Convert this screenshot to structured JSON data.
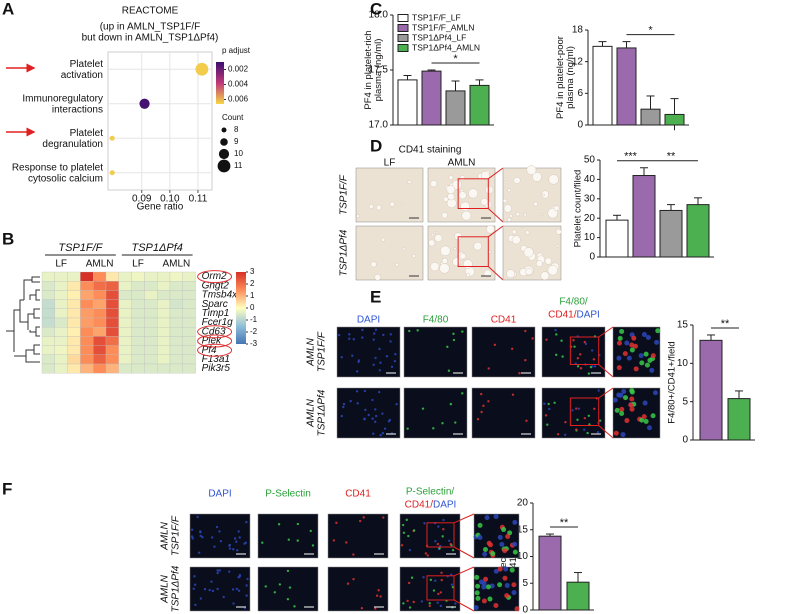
{
  "panel_labels": [
    "A",
    "B",
    "C",
    "D",
    "E",
    "F"
  ],
  "chart_data": [
    {
      "type": "dot",
      "title": "REACTOME",
      "subtitle": "(up in AMLN_TSP1F/F\nbut down in AMLN_TSP1ΔPf4)",
      "categories": [
        "Platelet\nactivation",
        "Immunoregulatory\ninteractions",
        "Platelet\ndegranulation",
        "Response to platelet\ncytosolic calcium"
      ],
      "x": [
        0.1114,
        0.091,
        0.0795,
        0.0795
      ],
      "p_adjust": [
        0.0064,
        0.0012,
        0.0064,
        0.0064
      ],
      "count": [
        11,
        10,
        8,
        8
      ],
      "xlim": [
        0.078,
        0.115
      ],
      "xticks": [
        {
          "value": 0.09,
          "label": "0.09"
        },
        {
          "value": 0.1,
          "label": "0.10"
        },
        {
          "value": 0.11,
          "label": "0.11"
        }
      ],
      "xlabel": "Gene ratio",
      "color_title": "p adjust",
      "clim": [
        0.001,
        0.0066
      ],
      "cticks": [
        0.002,
        0.004,
        0.006
      ],
      "size_title": "Count",
      "size_legend": [
        8,
        9,
        10,
        11
      ],
      "grid": true
    },
    {
      "type": "heatmap",
      "groups": [
        "TSP1F/F",
        "TSP1ΔPf4"
      ],
      "subgroups": [
        "LF",
        "AMLN",
        "LF",
        "AMLN"
      ],
      "rows": [
        "Orm2",
        "Gngt2",
        "Tmsb4x",
        "Sparc",
        "Timp1",
        "Fcer1g",
        "Cd63",
        "Plek",
        "Pf4",
        "F13a1",
        "Pik3r5"
      ],
      "highlighted": [
        0,
        6,
        7,
        8
      ],
      "values": [
        [
          -0.3,
          -0.3,
          -0.3,
          3,
          1.5,
          0.3,
          -0.3,
          -0.2,
          -0.3,
          -0.3,
          -0.2,
          -0.3
        ],
        [
          -0.5,
          -0.3,
          0.3,
          1.5,
          2,
          2.2,
          -0.3,
          -0.5,
          -0.5,
          -0.3,
          -0.5,
          -0.5
        ],
        [
          -0.5,
          -0.3,
          0.2,
          1.2,
          1.5,
          2.5,
          -0.5,
          -0.5,
          -0.3,
          -0.5,
          -0.5,
          -0.5
        ],
        [
          -0.8,
          -0.3,
          0.3,
          1.5,
          1.2,
          2.5,
          -0.3,
          -0.5,
          -0.5,
          -0.3,
          -0.6,
          -0.5
        ],
        [
          -0.8,
          -0.3,
          0.3,
          1.3,
          1.5,
          2.5,
          -0.3,
          -0.5,
          -0.5,
          -0.3,
          -0.5,
          -0.5
        ],
        [
          -0.8,
          -0.5,
          0.3,
          1.3,
          1.5,
          2.5,
          -0.3,
          -0.5,
          -0.5,
          -0.3,
          -0.5,
          -0.5
        ],
        [
          -0.5,
          -0.3,
          0.2,
          1.5,
          1.2,
          2.5,
          -0.3,
          -0.5,
          -0.5,
          -0.3,
          -0.5,
          -0.5
        ],
        [
          -0.3,
          -0.3,
          0.3,
          1.5,
          2.5,
          2,
          -0.3,
          -0.5,
          -0.5,
          -0.3,
          -0.5,
          -0.5
        ],
        [
          -0.3,
          -0.2,
          0.3,
          1.5,
          2.5,
          1.5,
          -0.3,
          -0.5,
          -0.5,
          -0.3,
          -0.5,
          -0.5
        ],
        [
          -0.5,
          -0.3,
          0.5,
          1.5,
          2.2,
          1.5,
          -0.3,
          -0.5,
          -0.5,
          -0.3,
          -0.5,
          -0.5
        ],
        [
          -0.5,
          -0.3,
          0.3,
          1,
          1.5,
          1,
          -0.5,
          -0.5,
          -0.5,
          -0.5,
          -0.5,
          -0.5
        ]
      ],
      "zlim": [
        -3,
        3
      ],
      "zticks": [
        3,
        2,
        1,
        0,
        -1,
        -2,
        -3
      ]
    },
    {
      "type": "bar",
      "ylabel": "PF4 in platelet-rich\nplasma (ng/ml)",
      "values": [
        17.41,
        17.49,
        17.31,
        17.36
      ],
      "errors": [
        0.04,
        0.01,
        0.09,
        0.05
      ],
      "colors": [
        "#ffffff",
        "#9b6aad",
        "#9a9a9a",
        "#4caf50"
      ],
      "legend": [
        "TSP1F/F_LF",
        "TSP1F/F_AMLN",
        "TSP1ΔPf4_LF",
        "TSP1ΔPf4_AMLN"
      ],
      "ylim": [
        17,
        18
      ],
      "yticks": [
        {
          "value": 17,
          "label": "17.0"
        },
        {
          "value": 17.5,
          "label": "17.5"
        },
        {
          "value": 18,
          "label": "18.0"
        }
      ],
      "brackets": [
        {
          "label": "*",
          "bars": [
            1,
            3
          ]
        }
      ]
    },
    {
      "type": "bar",
      "ylabel": "PF4 in platelet-poor\nplasma (ng/ml)",
      "values": [
        14.9,
        14.6,
        3.0,
        2.0
      ],
      "errors": [
        0.9,
        1.2,
        2.5,
        3.0
      ],
      "colors": [
        "#ffffff",
        "#9b6aad",
        "#9a9a9a",
        "#4caf50"
      ],
      "ylim": [
        0,
        18
      ],
      "yticks": [
        0,
        6,
        12,
        18
      ],
      "brackets": [
        {
          "label": "*",
          "bars": [
            1,
            3
          ]
        }
      ]
    },
    {
      "type": "bar",
      "ylabel": "Platelet count/filed",
      "values": [
        19,
        42,
        24,
        27
      ],
      "errors": [
        2.5,
        4,
        3,
        3.5
      ],
      "colors": [
        "#ffffff",
        "#9b6aad",
        "#9a9a9a",
        "#4caf50"
      ],
      "ylim": [
        0,
        50
      ],
      "yticks": [
        0,
        10,
        20,
        30,
        40,
        50
      ],
      "brackets": [
        {
          "label": "***",
          "bars": [
            0,
            1
          ]
        },
        {
          "label": "**",
          "bars": [
            1,
            3
          ]
        }
      ]
    },
    {
      "type": "bar",
      "ylabel": "F4/80+/CD41+/field",
      "values": [
        13,
        5.4
      ],
      "errors": [
        0.7,
        1.0
      ],
      "colors": [
        "#9b6aad",
        "#4caf50"
      ],
      "ylim": [
        0,
        15
      ],
      "yticks": [
        0,
        5,
        10,
        15
      ],
      "brackets": [
        {
          "label": "**",
          "bars": [
            0,
            1
          ]
        }
      ]
    },
    {
      "type": "bar",
      "ylabel": "P-selectin+ and\nCD41+/field",
      "values": [
        13.8,
        5.2
      ],
      "errors": [
        0.4,
        1.8
      ],
      "colors": [
        "#9b6aad",
        "#4caf50"
      ],
      "ylim": [
        0,
        20
      ],
      "yticks": [
        0,
        5,
        10,
        15,
        20
      ],
      "brackets": [
        {
          "label": "**",
          "bars": [
            0,
            1
          ]
        }
      ]
    }
  ],
  "micrographs": [
    {
      "title": "CD41 staining",
      "columns": [
        "LF",
        "AMLN"
      ],
      "rows": [
        "TSP1F/F",
        "TSP1ΔPf4"
      ]
    },
    {
      "columns": [
        "DAPI",
        "F4/80",
        "CD41"
      ],
      "merged": [
        "F4/80/",
        "CD41/",
        "DAPI"
      ],
      "rows": [
        "AMLN\nTSP1F/F",
        "AMLN\nTSP1ΔPf4"
      ]
    },
    {
      "columns": [
        "DAPI",
        "P-Selectin",
        "CD41"
      ],
      "merged": [
        "P-Selectin/",
        "CD41/",
        "DAPI"
      ],
      "rows": [
        "AMLN\nTSP1F/F",
        "AMLN\nTSP1ΔPf4"
      ]
    }
  ]
}
